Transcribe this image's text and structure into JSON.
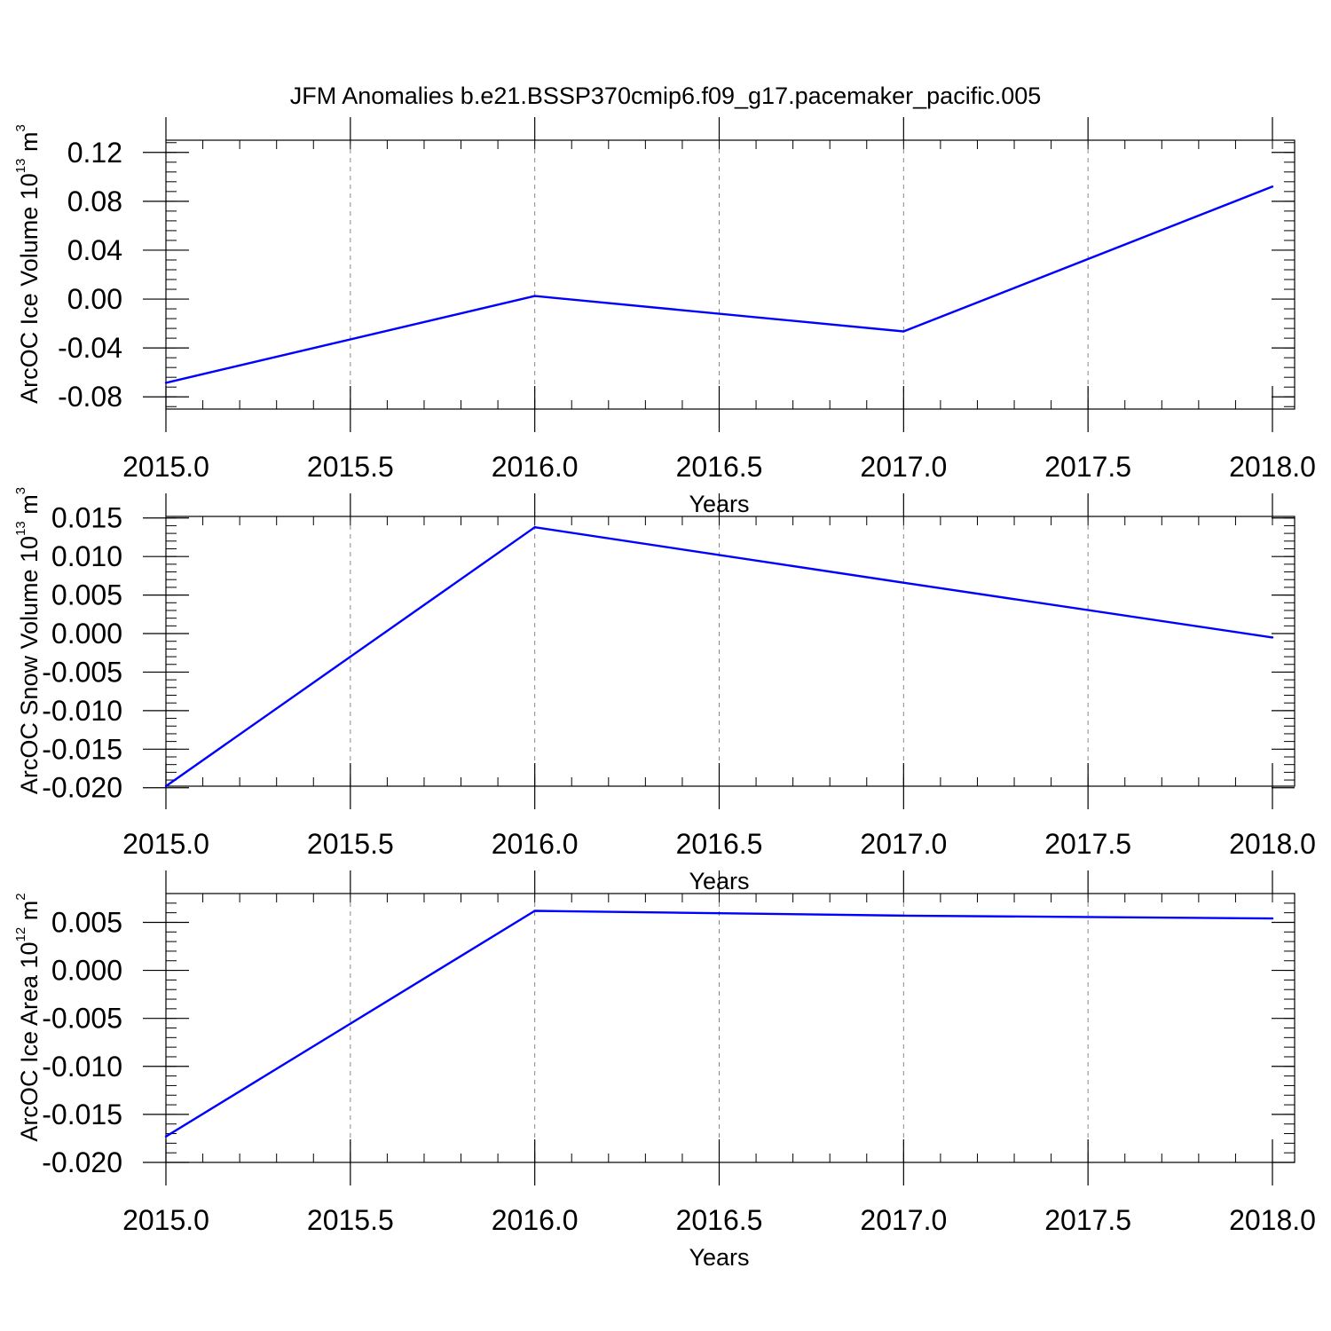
{
  "title": "JFM Anomalies b.e21.BSSP370cmip6.f09_g17.pacemaker_pacific.005",
  "colors": {
    "series": "#0000ff",
    "axis": "#000000",
    "grid": "#888888"
  },
  "chart_data": [
    {
      "type": "line",
      "xlabel": "Years",
      "ylabel": "ArcOC Ice Volume 10",
      "ylabel_exp": "13",
      "ylabel_unit": " m",
      "ylabel_unit_exp": "3",
      "xlim": [
        2015.0,
        2018.0
      ],
      "ylim": [
        -0.09,
        0.13
      ],
      "x_ticks": [
        2015.0,
        2015.5,
        2016.0,
        2016.5,
        2017.0,
        2017.5,
        2018.0
      ],
      "x_tick_labels": [
        "2015.0",
        "2015.5",
        "2016.0",
        "2016.5",
        "2017.0",
        "2017.5",
        "2018.0"
      ],
      "y_ticks": [
        -0.08,
        -0.04,
        0.0,
        0.04,
        0.08,
        0.12
      ],
      "y_tick_labels": [
        "-0.08",
        "-0.04",
        "0.00",
        "0.04",
        "0.08",
        "0.12"
      ],
      "y_minor_step": 0.008,
      "grid": "x-dashed",
      "series": [
        {
          "x": [
            2015,
            2016,
            2017,
            2018
          ],
          "values": [
            -0.0685,
            0.0025,
            -0.0265,
            0.092
          ]
        }
      ]
    },
    {
      "type": "line",
      "xlabel": "Years",
      "ylabel": "ArcOC Snow Volume 10",
      "ylabel_exp": "13",
      "ylabel_unit": " m",
      "ylabel_unit_exp": "3",
      "xlim": [
        2015.0,
        2018.0
      ],
      "ylim": [
        -0.0198,
        0.0152
      ],
      "x_ticks": [
        2015.0,
        2015.5,
        2016.0,
        2016.5,
        2017.0,
        2017.5,
        2018.0
      ],
      "x_tick_labels": [
        "2015.0",
        "2015.5",
        "2016.0",
        "2016.5",
        "2017.0",
        "2017.5",
        "2018.0"
      ],
      "y_ticks": [
        -0.02,
        -0.015,
        -0.01,
        -0.005,
        0.0,
        0.005,
        0.01,
        0.015
      ],
      "y_tick_labels": [
        "-0.020",
        "-0.015",
        "-0.010",
        "-0.005",
        "0.000",
        "0.005",
        "0.010",
        "0.015"
      ],
      "y_minor_step": 0.001,
      "grid": "x-dashed",
      "series": [
        {
          "x": [
            2015,
            2016,
            2017,
            2018
          ],
          "values": [
            -0.0198,
            0.0138,
            0.0066,
            -0.0005
          ]
        }
      ]
    },
    {
      "type": "line",
      "xlabel": "Years",
      "ylabel": "ArcOC Ice Area 10",
      "ylabel_exp": "12",
      "ylabel_unit": " m",
      "ylabel_unit_exp": "2",
      "xlim": [
        2015.0,
        2018.0
      ],
      "ylim": [
        -0.02,
        0.008
      ],
      "x_ticks": [
        2015.0,
        2015.5,
        2016.0,
        2016.5,
        2017.0,
        2017.5,
        2018.0
      ],
      "x_tick_labels": [
        "2015.0",
        "2015.5",
        "2016.0",
        "2016.5",
        "2017.0",
        "2017.5",
        "2018.0"
      ],
      "y_ticks": [
        -0.02,
        -0.015,
        -0.01,
        -0.005,
        0.0,
        0.005
      ],
      "y_tick_labels": [
        "-0.020",
        "-0.015",
        "-0.010",
        "-0.005",
        "0.000",
        "0.005"
      ],
      "y_minor_step": 0.001,
      "grid": "x-dashed",
      "series": [
        {
          "x": [
            2015,
            2016,
            2017,
            2018
          ],
          "values": [
            -0.0173,
            0.0062,
            0.0057,
            0.0054
          ]
        }
      ]
    }
  ]
}
